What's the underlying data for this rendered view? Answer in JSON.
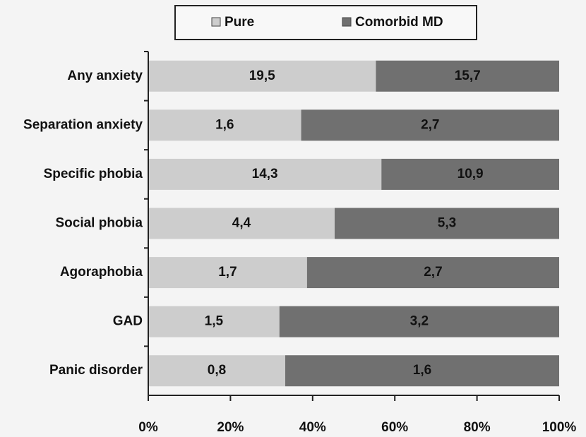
{
  "chart_data": {
    "type": "bar",
    "orientation": "horizontal",
    "stacked": "percent",
    "categories": [
      "Any anxiety",
      "Separation anxiety",
      "Specific phobia",
      "Social phobia",
      "Agoraphobia",
      "GAD",
      "Panic disorder"
    ],
    "series": [
      {
        "name": "Pure",
        "color": "#cdcdcd",
        "values": [
          19.5,
          1.6,
          14.3,
          4.4,
          1.7,
          1.5,
          0.8
        ],
        "value_labels": [
          "19,5",
          "1,6",
          "14,3",
          "4,4",
          "1,7",
          "1,5",
          "0,8"
        ]
      },
      {
        "name": "Comorbid MD",
        "color": "#707070",
        "values": [
          15.7,
          2.7,
          10.9,
          5.3,
          2.7,
          3.2,
          1.6
        ],
        "value_labels": [
          "15,7",
          "2,7",
          "10,9",
          "5,3",
          "2,7",
          "3,2",
          "1,6"
        ]
      }
    ],
    "xlim": [
      0,
      100
    ],
    "xticks": [
      {
        "value": 0,
        "label": "0%"
      },
      {
        "value": 20,
        "label": "20%"
      },
      {
        "value": 40,
        "label": "40%"
      },
      {
        "value": 60,
        "label": "60%"
      },
      {
        "value": 80,
        "label": "80%"
      },
      {
        "value": 100,
        "label": "100%"
      }
    ],
    "legend": "top"
  }
}
